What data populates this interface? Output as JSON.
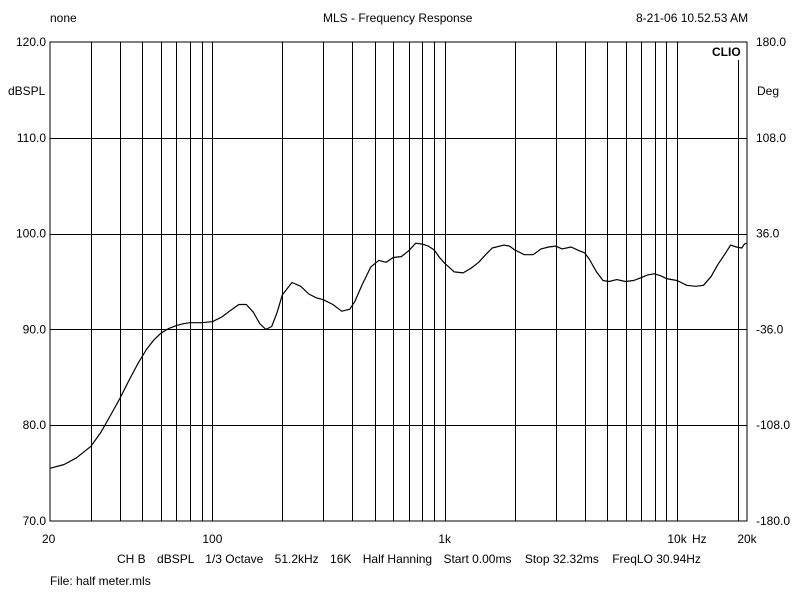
{
  "header": {
    "left": "none",
    "title": "MLS - Frequency Response",
    "timestamp": "8-21-06 10.52.53 AM"
  },
  "brand": "CLIO",
  "footer": {
    "settings": [
      {
        "label": "CH B"
      },
      {
        "label": "dBSPL"
      },
      {
        "label": "1/3 Octave"
      },
      {
        "label": "51.2kHz"
      },
      {
        "label": "16K"
      },
      {
        "label": "Half Hanning"
      },
      {
        "label": "Start 0.00ms"
      },
      {
        "label": "Stop 32.32ms"
      },
      {
        "label": "FreqLO 30.94Hz"
      }
    ],
    "file": "File: half meter.mls"
  },
  "colors": {
    "line": "#000000",
    "grid": "#000000",
    "background": "#ffffff"
  },
  "chart_data": {
    "type": "line",
    "title": "MLS - Frequency Response",
    "x_scale": "log",
    "xlim": [
      20,
      20000
    ],
    "ylim": [
      70,
      120
    ],
    "ylim_right": [
      -180,
      180
    ],
    "ylabel": "dBSPL",
    "ylabel_right": "Deg",
    "xlabel": "Hz",
    "grid": true,
    "x_ticks": [
      {
        "value": 20,
        "label": "20"
      },
      {
        "value": 100,
        "label": "100"
      },
      {
        "value": 1000,
        "label": "1k"
      },
      {
        "value": 10000,
        "label": "10k"
      },
      {
        "value": 20000,
        "label": "20k"
      }
    ],
    "y_ticks": [
      {
        "value": 70,
        "label": "70.0"
      },
      {
        "value": 80,
        "label": "80.0"
      },
      {
        "value": 90,
        "label": "90.0"
      },
      {
        "value": 100,
        "label": "100.0"
      },
      {
        "value": 110,
        "label": "110.0"
      },
      {
        "value": 120,
        "label": "120.0"
      }
    ],
    "y_ticks_right": [
      {
        "value": -180,
        "label": "-180.0"
      },
      {
        "value": -108,
        "label": "-108.0"
      },
      {
        "value": -36,
        "label": "-36.0"
      },
      {
        "value": 36,
        "label": "36.0"
      },
      {
        "value": 108,
        "label": "108.0"
      },
      {
        "value": 180,
        "label": "180.0"
      }
    ],
    "series": [
      {
        "x": [
          20,
          23,
          26,
          30,
          33,
          36,
          40,
          44,
          48,
          52,
          56,
          60,
          65,
          70,
          75,
          80,
          90,
          100,
          110,
          120,
          130,
          140,
          150,
          160,
          170,
          180,
          190,
          200,
          220,
          240,
          260,
          280,
          300,
          330,
          360,
          390,
          410,
          440,
          480,
          520,
          560,
          600,
          650,
          700,
          750,
          800,
          850,
          900,
          950,
          1000,
          1100,
          1200,
          1300,
          1400,
          1500,
          1600,
          1800,
          1900,
          2000,
          2200,
          2400,
          2600,
          2800,
          3000,
          3200,
          3500,
          3800,
          4000,
          4200,
          4500,
          4800,
          5100,
          5500,
          6000,
          6500,
          7000,
          7500,
          8000,
          8500,
          9000,
          9500,
          10000,
          11000,
          12000,
          13000,
          14000,
          15000,
          16000,
          17000,
          18000,
          19000,
          19500,
          20000
        ],
        "y": [
          75.5,
          75.9,
          76.6,
          77.8,
          79.2,
          80.8,
          82.8,
          84.8,
          86.5,
          87.9,
          88.9,
          89.6,
          90.1,
          90.4,
          90.6,
          90.7,
          90.7,
          90.8,
          91.3,
          92.0,
          92.6,
          92.6,
          91.8,
          90.6,
          90.0,
          90.3,
          91.8,
          93.6,
          94.9,
          94.5,
          93.7,
          93.3,
          93.1,
          92.6,
          91.9,
          92.1,
          92.9,
          94.6,
          96.5,
          97.2,
          97.0,
          97.5,
          97.6,
          98.2,
          99.0,
          98.9,
          98.7,
          98.3,
          97.5,
          96.9,
          96.0,
          95.9,
          96.4,
          97.0,
          97.8,
          98.5,
          98.8,
          98.7,
          98.3,
          97.8,
          97.8,
          98.4,
          98.6,
          98.7,
          98.4,
          98.6,
          98.2,
          98.0,
          97.3,
          96.0,
          95.1,
          95.0,
          95.2,
          95.0,
          95.1,
          95.4,
          95.7,
          95.8,
          95.6,
          95.3,
          95.2,
          95.1,
          94.6,
          94.5,
          94.6,
          95.5,
          96.8,
          97.8,
          98.8,
          98.6,
          98.5,
          98.9,
          99.0
        ]
      }
    ]
  }
}
